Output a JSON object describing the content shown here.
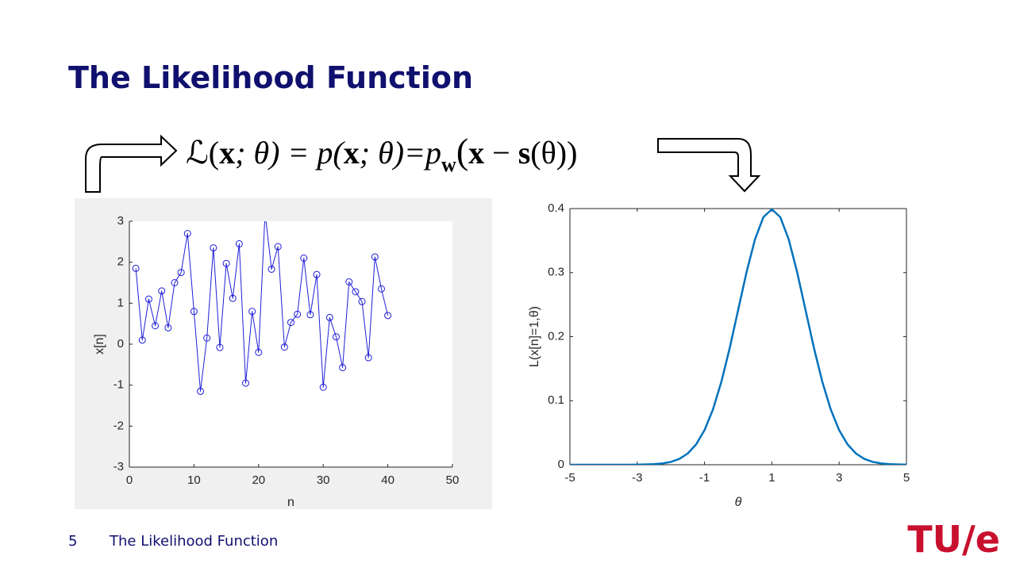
{
  "title": "The Likelihood Function",
  "formula": [
    "ℒ(",
    "x",
    "; θ) = p(",
    "x",
    "; θ)=p",
    "w",
    "(",
    "x",
    " − ",
    "s",
    "(θ))"
  ],
  "footer": {
    "page": "5",
    "text": "The Likelihood Function",
    "logo": "TU/e"
  },
  "chart_data": [
    {
      "type": "line",
      "markers": "circle",
      "box": false,
      "color": "#1f1fd8",
      "background": "#f0f0f0",
      "xlabel": "n",
      "ylabel": "x[n]",
      "x": [
        1,
        2,
        3,
        4,
        5,
        6,
        7,
        8,
        9,
        10,
        11,
        12,
        13,
        14,
        15,
        16,
        17,
        18,
        19,
        20,
        21,
        22,
        23,
        24,
        25,
        26,
        27,
        28,
        29,
        30,
        31,
        32,
        33,
        34,
        35,
        36,
        37,
        38,
        39,
        40
      ],
      "values": [
        1.85,
        0.1,
        1.1,
        0.45,
        1.3,
        0.4,
        1.5,
        1.75,
        2.7,
        0.8,
        -1.15,
        0.15,
        2.35,
        -0.08,
        1.97,
        1.12,
        2.45,
        -0.95,
        0.8,
        -0.2,
        3.2,
        1.83,
        2.38,
        -0.07,
        0.53,
        0.73,
        2.1,
        0.72,
        1.7,
        -1.05,
        0.65,
        0.18,
        -0.57,
        1.52,
        1.28,
        1.04,
        -0.33,
        2.13,
        1.35,
        0.7
      ],
      "xlim": [
        0,
        50
      ],
      "xticks": [
        0,
        10,
        20,
        30,
        40,
        50
      ],
      "ylim": [
        -3,
        3
      ],
      "yticks": [
        -3,
        -2,
        -1,
        0,
        1,
        2,
        3
      ]
    },
    {
      "type": "line",
      "box": true,
      "color": "#0072bd",
      "xlabel": "θ",
      "ylabel": "L(x[n]=1,θ)",
      "x": [
        -5,
        -4.75,
        -4.5,
        -4.25,
        -4,
        -3.75,
        -3.5,
        -3.25,
        -3,
        -2.75,
        -2.5,
        -2.25,
        -2,
        -1.75,
        -1.5,
        -1.25,
        -1,
        -0.75,
        -0.5,
        -0.25,
        0,
        0.25,
        0.5,
        0.75,
        1,
        1.25,
        1.5,
        1.75,
        2,
        2.25,
        2.5,
        2.75,
        3,
        3.25,
        3.5,
        3.75,
        4,
        4.25,
        4.5,
        4.75,
        5
      ],
      "values": [
        0,
        0,
        0,
        0,
        0,
        0,
        0,
        0,
        0.0001,
        0.0004,
        0.0009,
        0.002,
        0.0044,
        0.0091,
        0.0175,
        0.0317,
        0.054,
        0.0863,
        0.1295,
        0.1826,
        0.242,
        0.3011,
        0.3521,
        0.3867,
        0.3989,
        0.3867,
        0.3521,
        0.3011,
        0.242,
        0.1826,
        0.1295,
        0.0863,
        0.054,
        0.0317,
        0.0175,
        0.0091,
        0.0044,
        0.002,
        0.0009,
        0.0004,
        0.0001
      ],
      "xlim": [
        -5,
        5
      ],
      "xticks": [
        -5,
        -3,
        -1,
        1,
        3,
        5
      ],
      "ylim": [
        0,
        0.4
      ],
      "yticks": [
        0,
        0.1,
        0.2,
        0.3,
        0.4
      ]
    }
  ]
}
